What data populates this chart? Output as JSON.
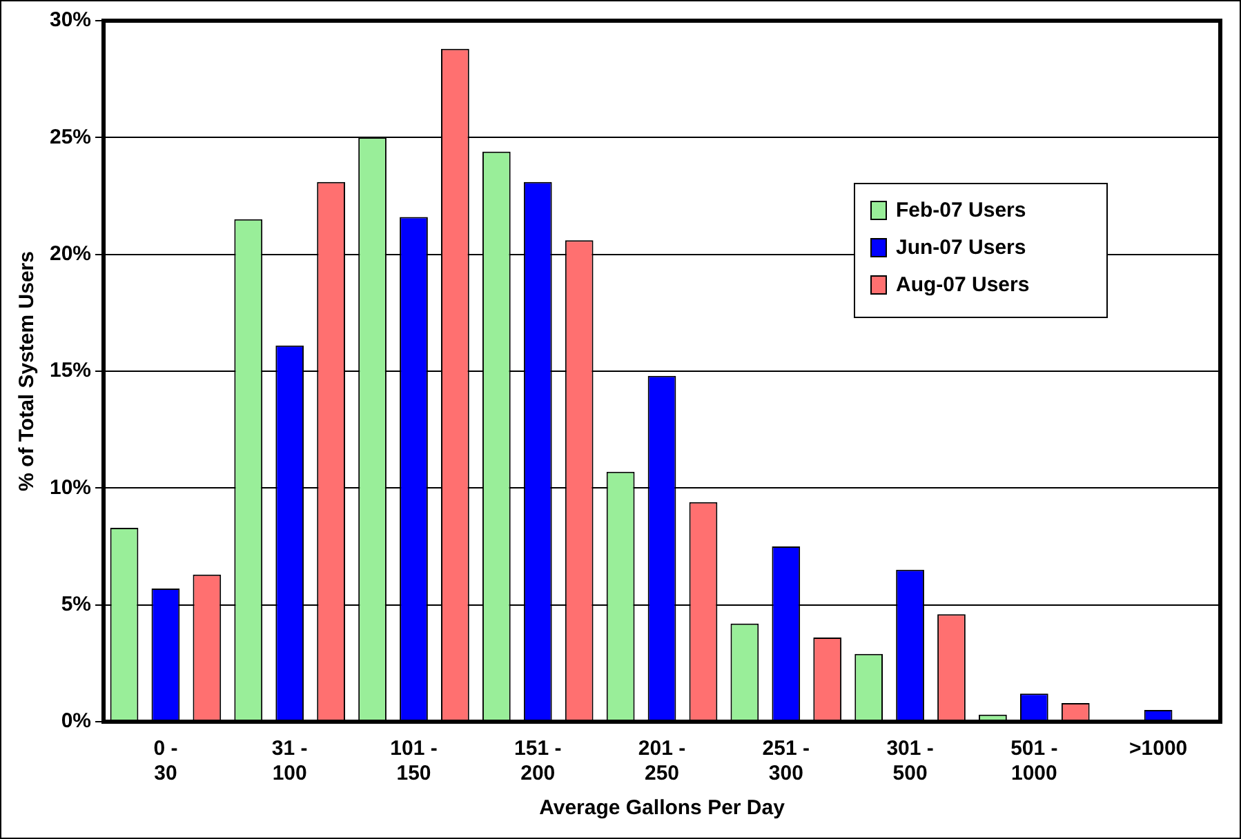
{
  "chart_data": {
    "type": "bar",
    "xlabel": "Average Gallons Per Day",
    "ylabel": "% of Total System Users",
    "categories": [
      "0 -\n30",
      "31 -\n100",
      "101 -\n150",
      "151 -\n200",
      "201 -\n250",
      "251 -\n300",
      "301 -\n500",
      "501 -\n1000",
      ">1000"
    ],
    "series": [
      {
        "name": "Feb-07 Users",
        "color": "#99ee99",
        "values": [
          8.3,
          21.5,
          25.0,
          24.4,
          10.7,
          4.2,
          2.9,
          0.3,
          0
        ]
      },
      {
        "name": "Jun-07 Users",
        "color": "#0000ff",
        "values": [
          5.7,
          16.1,
          21.6,
          23.1,
          14.8,
          7.5,
          6.5,
          1.2,
          0.5
        ]
      },
      {
        "name": "Aug-07 Users",
        "color": "#ff7070",
        "values": [
          6.3,
          23.1,
          28.8,
          20.6,
          9.4,
          3.6,
          4.6,
          0.8,
          0
        ]
      }
    ],
    "ylim": [
      0,
      30
    ],
    "yticks": [
      {
        "value": 0,
        "label": "0%"
      },
      {
        "value": 5,
        "label": "5%"
      },
      {
        "value": 10,
        "label": "10%"
      },
      {
        "value": 15,
        "label": "15%"
      },
      {
        "value": 20,
        "label": "20%"
      },
      {
        "value": 25,
        "label": "25%"
      },
      {
        "value": 30,
        "label": "30%"
      }
    ],
    "grid": "y",
    "legend": "top right"
  }
}
